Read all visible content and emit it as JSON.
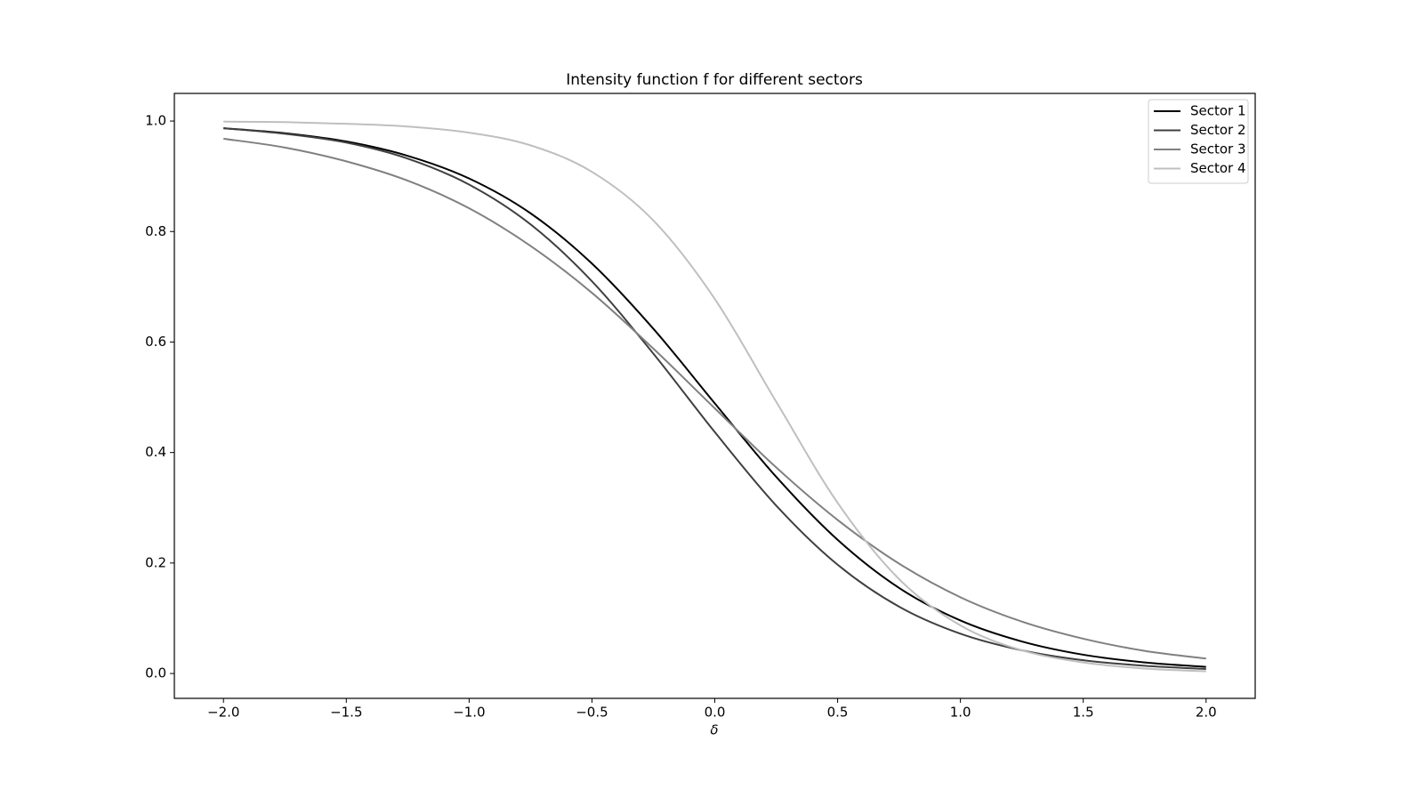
{
  "chart_data": {
    "type": "line",
    "title": "Intensity function f for different sectors",
    "x_label": "δ",
    "x": [
      -2,
      -1.75,
      -1.5,
      -1.25,
      -1,
      -0.75,
      -0.5,
      -0.25,
      0,
      0.25,
      0.5,
      0.75,
      1,
      1.25,
      1.5,
      1.75,
      2
    ],
    "series": [
      {
        "name": "Sector 1",
        "color": "#000000",
        "values": [
          0.987,
          0.978,
          0.963,
          0.937,
          0.896,
          0.833,
          0.742,
          0.624,
          0.489,
          0.356,
          0.242,
          0.155,
          0.096,
          0.058,
          0.034,
          0.02,
          0.012
        ]
      },
      {
        "name": "Sector 2",
        "color": "#404040",
        "values": [
          0.987,
          0.977,
          0.961,
          0.932,
          0.885,
          0.813,
          0.71,
          0.579,
          0.437,
          0.304,
          0.197,
          0.121,
          0.072,
          0.042,
          0.024,
          0.014,
          0.008
        ]
      },
      {
        "name": "Sector 3",
        "color": "#808080",
        "values": [
          0.968,
          0.952,
          0.927,
          0.892,
          0.842,
          0.774,
          0.689,
          0.588,
          0.48,
          0.373,
          0.278,
          0.199,
          0.138,
          0.094,
          0.063,
          0.041,
          0.027
        ]
      },
      {
        "name": "Sector 4",
        "color": "#bfbfbf",
        "values": [
          0.999,
          0.998,
          0.995,
          0.99,
          0.979,
          0.956,
          0.908,
          0.82,
          0.678,
          0.492,
          0.309,
          0.171,
          0.087,
          0.042,
          0.02,
          0.009,
          0.004
        ]
      }
    ],
    "xlim": [
      -2.2,
      2.2
    ],
    "ylim": [
      -0.045,
      1.05
    ],
    "xticks": [
      {
        "value": -2,
        "label": "−2.0"
      },
      {
        "value": -1.5,
        "label": "−1.5"
      },
      {
        "value": -1,
        "label": "−1.0"
      },
      {
        "value": -0.5,
        "label": "−0.5"
      },
      {
        "value": 0,
        "label": "0.0"
      },
      0.5,
      {
        "value": 1,
        "label": "1.0"
      },
      1.5,
      {
        "value": 2,
        "label": "2.0"
      }
    ],
    "yticks": [
      {
        "value": 0,
        "label": "0.0"
      },
      0.2,
      0.4,
      0.6,
      0.8,
      {
        "value": 1,
        "label": "1.0"
      }
    ],
    "grid": false,
    "legend": "upper right"
  }
}
